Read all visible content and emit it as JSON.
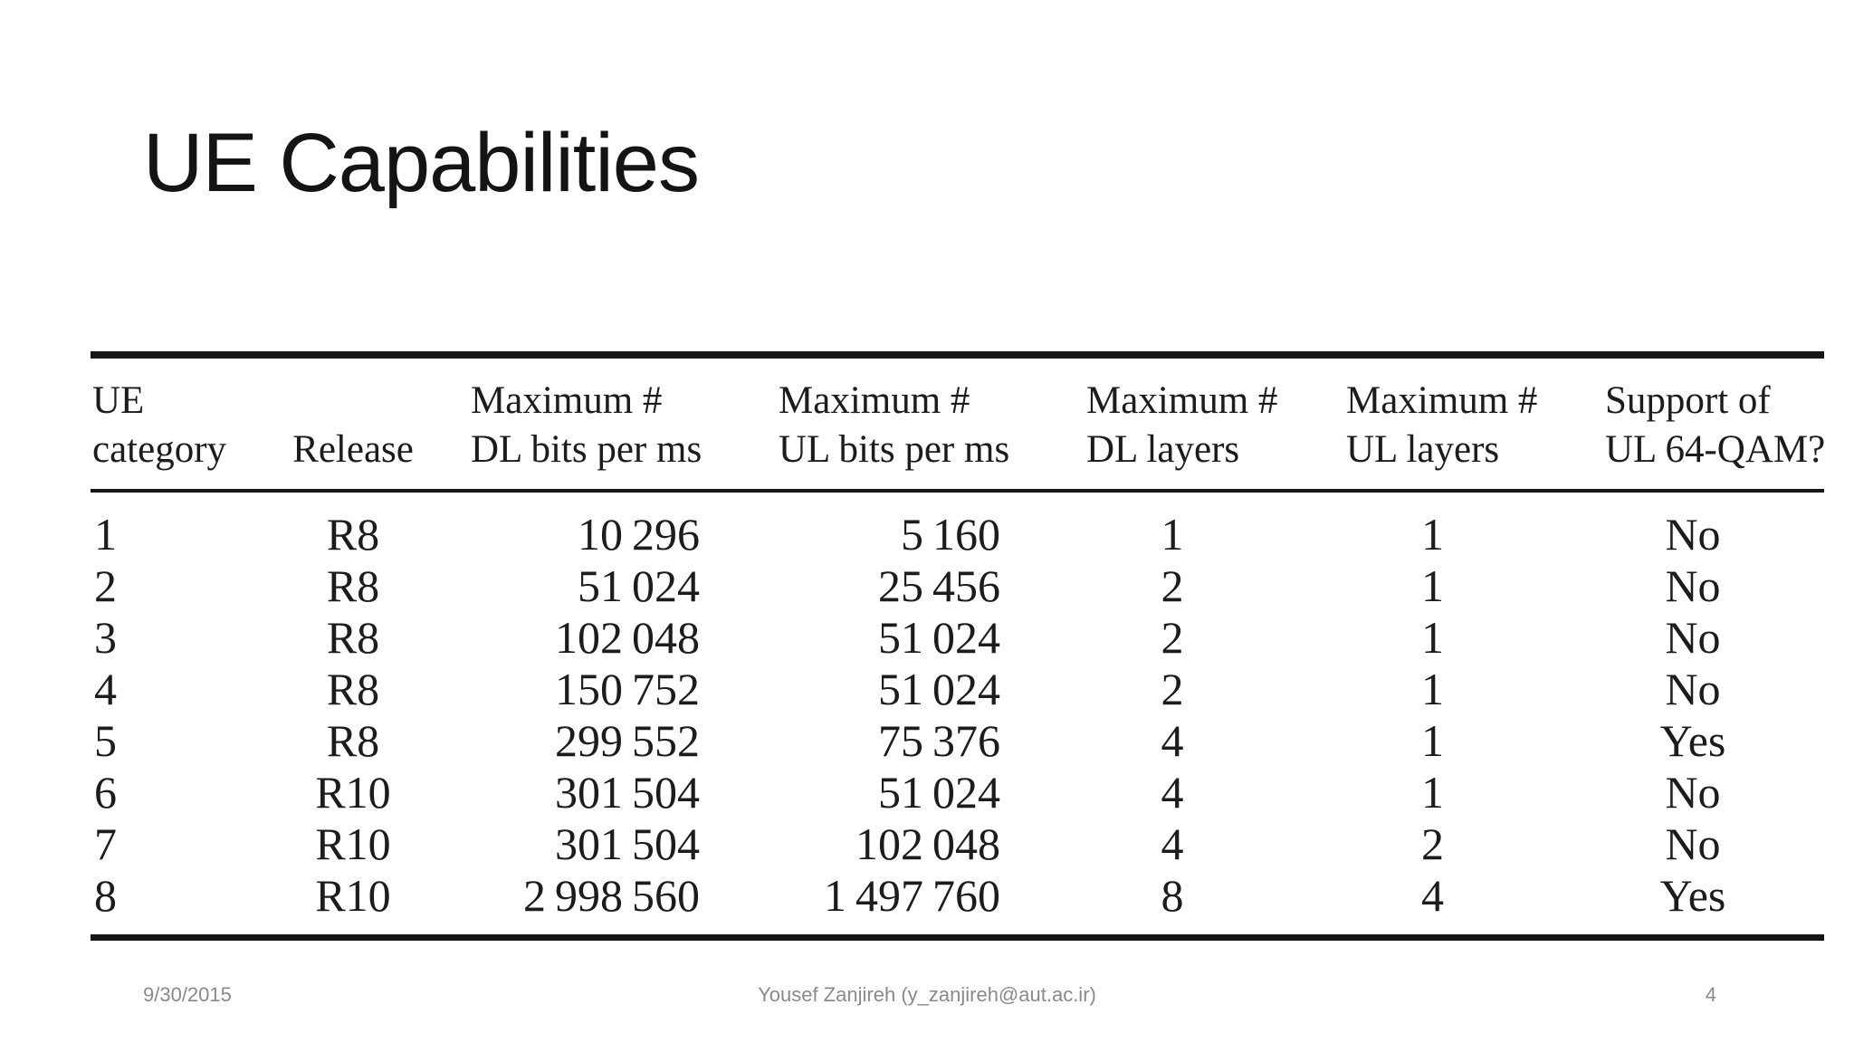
{
  "slide": {
    "title": "UE Capabilities",
    "background_color": "#ffffff",
    "title_color": "#141414",
    "footer": {
      "date": "9/30/2015",
      "author": "Yousef Zanjireh (y_zanjireh@aut.ac.ir)",
      "page_number": "4",
      "color": "#8a8a8a"
    }
  },
  "table": {
    "rule_color": "#161616",
    "text_color": "#1c1c1c",
    "columns": [
      {
        "id": "ue-category",
        "lines": [
          "UE",
          "category"
        ]
      },
      {
        "id": "release",
        "lines": [
          "Release"
        ]
      },
      {
        "id": "max-dl-bits-per-ms",
        "lines": [
          "Maximum #",
          "DL bits per ms"
        ]
      },
      {
        "id": "max-ul-bits-per-ms",
        "lines": [
          "Maximum #",
          "UL bits per ms"
        ]
      },
      {
        "id": "max-dl-layers",
        "lines": [
          "Maximum #",
          "DL layers"
        ]
      },
      {
        "id": "max-ul-layers",
        "lines": [
          "Maximum #",
          "UL layers"
        ]
      },
      {
        "id": "support-ul-64qam",
        "lines": [
          "Support of",
          "UL 64-QAM?"
        ]
      }
    ],
    "rows": [
      {
        "cells": [
          "1",
          "R8",
          "10 296",
          "5 160",
          "1",
          "1",
          "No"
        ]
      },
      {
        "cells": [
          "2",
          "R8",
          "51 024",
          "25 456",
          "2",
          "1",
          "No"
        ]
      },
      {
        "cells": [
          "3",
          "R8",
          "102 048",
          "51 024",
          "2",
          "1",
          "No"
        ]
      },
      {
        "cells": [
          "4",
          "R8",
          "150 752",
          "51 024",
          "2",
          "1",
          "No"
        ]
      },
      {
        "cells": [
          "5",
          "R8",
          "299 552",
          "75 376",
          "4",
          "1",
          "Yes"
        ]
      },
      {
        "cells": [
          "6",
          "R10",
          "301 504",
          "51 024",
          "4",
          "1",
          "No"
        ]
      },
      {
        "cells": [
          "7",
          "R10",
          "301 504",
          "102 048",
          "4",
          "2",
          "No"
        ]
      },
      {
        "cells": [
          "8",
          "R10",
          "2 998 560",
          "1 497 760",
          "8",
          "4",
          "Yes"
        ]
      }
    ]
  }
}
